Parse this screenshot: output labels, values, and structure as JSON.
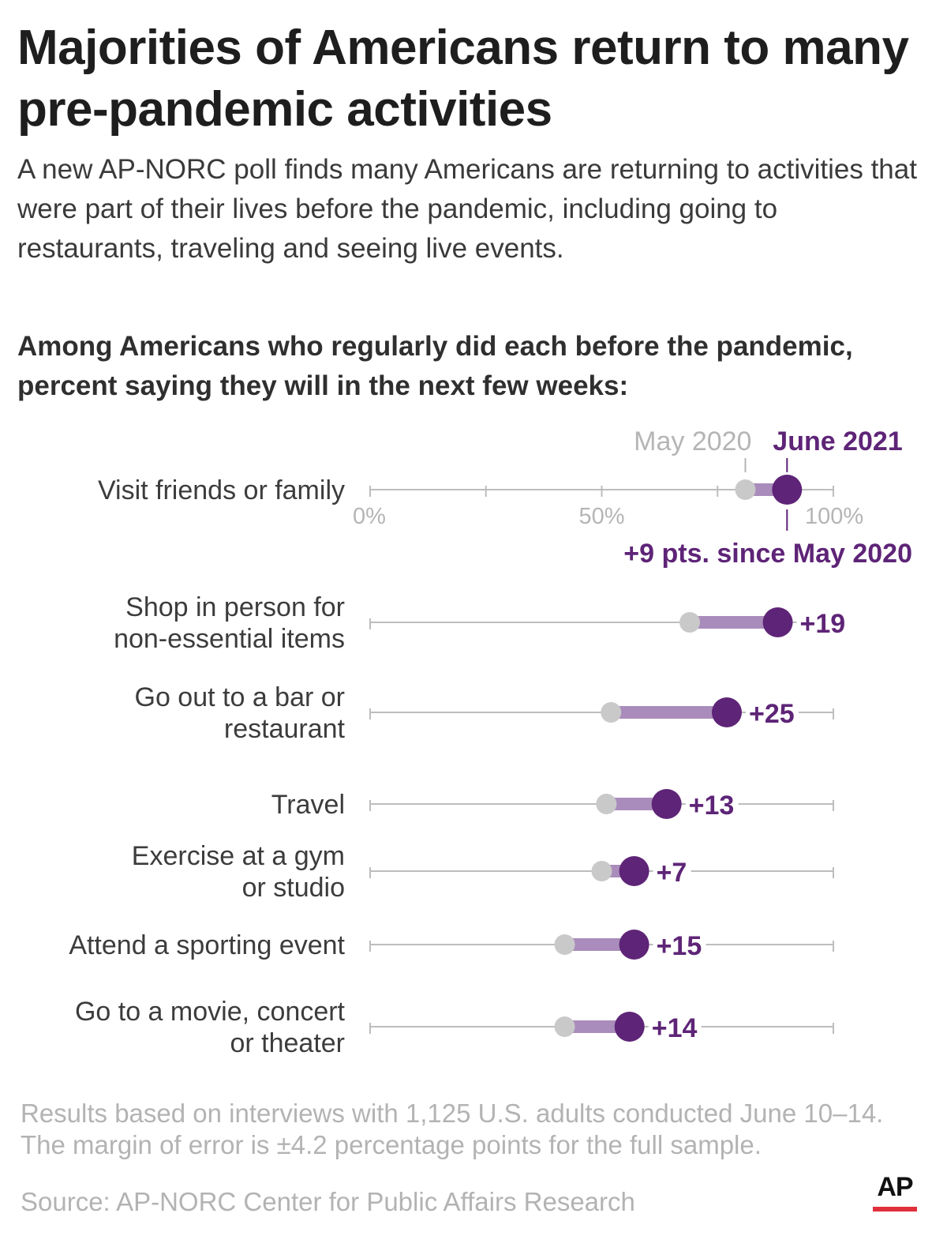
{
  "header": {
    "title": "Majorities of Americans return to many pre-pandemic activities",
    "subtitle": "A new AP-NORC poll finds many Americans are returning to activities that were part of their lives before the pandemic, including going to restaurants, traveling and seeing live events.",
    "question": "Among Americans who regularly did each before the pandemic, percent saying they will in the next few weeks:"
  },
  "chart_data": {
    "type": "dot-plot",
    "legend": {
      "start": "May 2020",
      "end": "June 2021"
    },
    "annotation": "+9 pts. since May 2020",
    "xlim": [
      0,
      100
    ],
    "ticks": [
      0,
      25,
      50,
      75,
      100
    ],
    "tick_labels": {
      "0": "0%",
      "50": "50%",
      "100": "100%"
    },
    "categories": [
      "Visit friends or family",
      "Shop in person for\nnon-essential items",
      "Go out to a bar or\nrestaurant",
      "Travel",
      "Exercise at a gym\nor studio",
      "Attend a sporting event",
      "Go to a movie, concert\nor theater"
    ],
    "series": [
      {
        "name": "May 2020",
        "values": [
          81,
          69,
          52,
          51,
          50,
          42,
          42
        ]
      },
      {
        "name": "June 2021",
        "values": [
          90,
          88,
          77,
          64,
          57,
          57,
          56
        ]
      }
    ],
    "change_labels": [
      "",
      "+19",
      "+25",
      "+13",
      "+7",
      "+15",
      "+14"
    ],
    "colors": {
      "start": "#c9c9c9",
      "end": "#5e2477",
      "connector": "#a98cbb",
      "axis": "#bdbdbd"
    }
  },
  "footer": {
    "note": "Results based on interviews with 1,125 U.S. adults conducted June 10–14. The margin of error is ±4.2 percentage points for the full sample.",
    "source": "Source: AP-NORC Center for Public Affairs Research",
    "logo_text": "AP"
  }
}
